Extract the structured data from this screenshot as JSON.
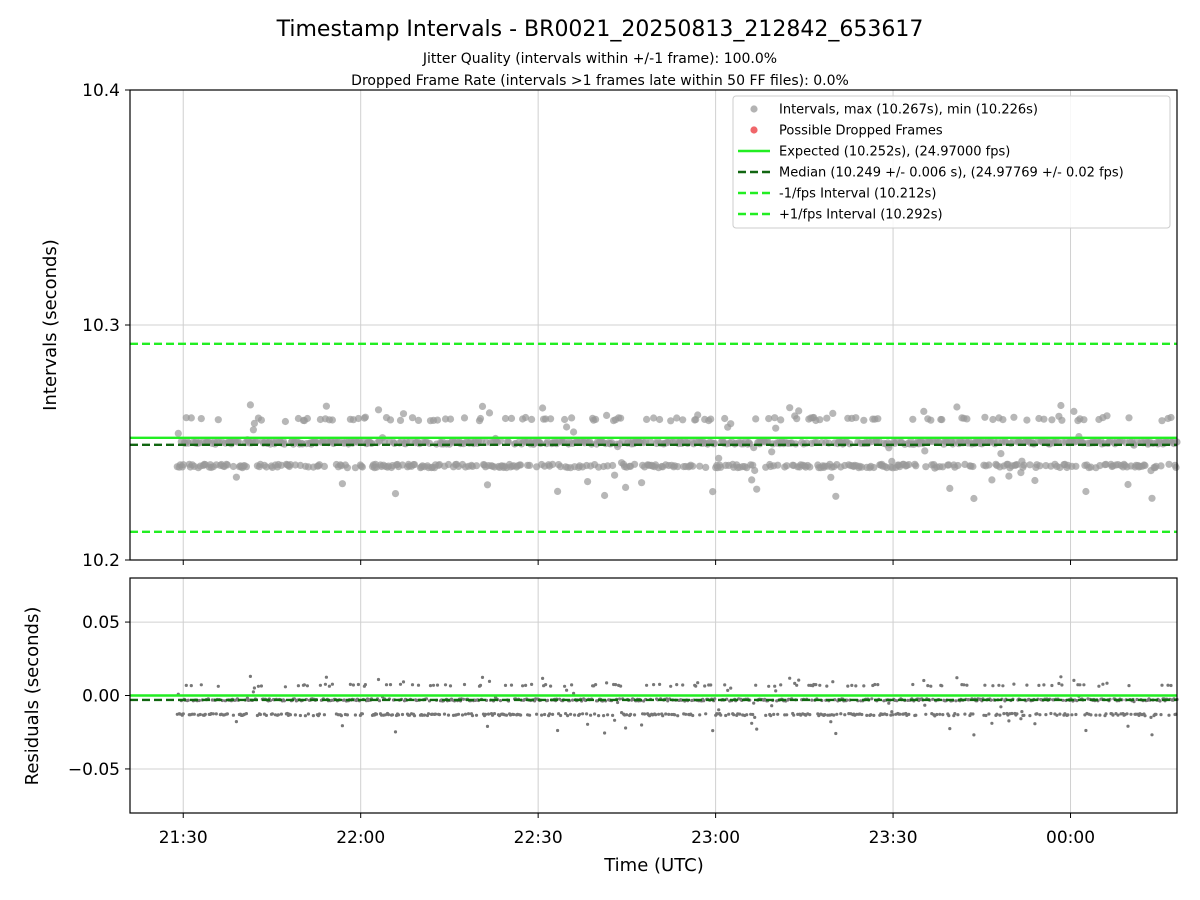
{
  "chart_data": {
    "type": "scatter",
    "title": "Timestamp Intervals - BR0021_20250813_212842_653617",
    "subtitle_lines": [
      "Jitter Quality (intervals within +/-1 frame): 100.0%",
      "Dropped Frame Rate (intervals >1 frames late within 50 FF files): 0.0%"
    ],
    "xlabel": "Time (UTC)",
    "xticks": [
      "21:30",
      "22:00",
      "22:30",
      "23:00",
      "23:30",
      "00:00"
    ],
    "xlim": [
      "21:21",
      "00:18"
    ],
    "grid": true,
    "top_panel": {
      "ylabel": "Intervals (seconds)",
      "ylim": [
        10.2,
        10.4
      ],
      "yticks": [
        "10.2",
        "10.3",
        "10.4"
      ],
      "legend_position": "upper-right",
      "series": [
        {
          "name": "Intervals, max (10.267s), min (10.226s)",
          "kind": "scatter",
          "color": "#999999",
          "levels": [
            10.24,
            10.25,
            10.26
          ],
          "x_range": [
            "21:29",
            "00:18"
          ],
          "max": 10.267,
          "min": 10.226
        },
        {
          "name": "Possible Dropped Frames",
          "kind": "scatter",
          "color": "#f0666a",
          "count": 0
        },
        {
          "name": "Expected (10.252s), (24.97000 fps)",
          "kind": "hline",
          "style": "solid",
          "color": "#22ee22",
          "y": 10.252
        },
        {
          "name": "Median (10.249 +/- 0.006 s), (24.97769 +/- 0.02 fps)",
          "kind": "hline",
          "style": "dashed",
          "color": "#116611",
          "y": 10.249
        },
        {
          "name": "-1/fps Interval (10.212s)",
          "kind": "hline",
          "style": "dashed",
          "color": "#22ee22",
          "y": 10.212
        },
        {
          "name": "+1/fps Interval (10.292s)",
          "kind": "hline",
          "style": "dashed",
          "color": "#22ee22",
          "y": 10.292
        }
      ]
    },
    "bottom_panel": {
      "ylabel": "Residuals (seconds)",
      "ylim": [
        -0.08,
        0.08
      ],
      "yticks": [
        "0.05",
        "0.00",
        "−0.05"
      ],
      "series": [
        {
          "kind": "scatter",
          "color": "#777777",
          "levels": [
            -0.013,
            -0.003,
            0.007
          ]
        },
        {
          "kind": "hline",
          "style": "solid",
          "color": "#22ee22",
          "y": 0.0
        },
        {
          "kind": "hline",
          "style": "dashed",
          "color": "#116611",
          "y": -0.003
        }
      ]
    }
  }
}
